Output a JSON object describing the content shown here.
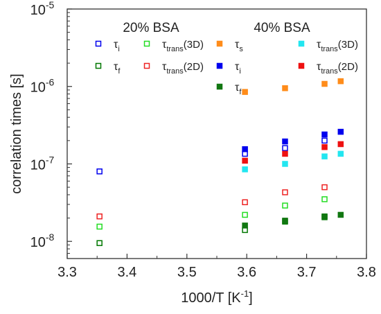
{
  "chart_data": {
    "type": "scatter",
    "xlabel": "1000/T [K",
    "xlabel_sup": "-1",
    "xlabel_end": "]",
    "ylabel": "correlation times [s]",
    "xlim": [
      3.3,
      3.8
    ],
    "ylim": [
      6e-09,
      1e-05
    ],
    "yscale": "log",
    "x_ticks": [
      "3.3",
      "3.4",
      "3.5",
      "3.6",
      "3.7",
      "3.8"
    ],
    "x_tick_values": [
      3.3,
      3.4,
      3.5,
      3.6,
      3.7,
      3.8
    ],
    "y_ticks": [
      {
        "base": "10",
        "exp": "-8",
        "value": 1e-08
      },
      {
        "base": "10",
        "exp": "-7",
        "value": 1e-07
      },
      {
        "base": "10",
        "exp": "-6",
        "value": 1e-06
      },
      {
        "base": "10",
        "exp": "-5",
        "value": 1e-05
      }
    ],
    "groups": [
      {
        "title": "20% BSA"
      },
      {
        "title": "40% BSA"
      }
    ],
    "legend_symbol": "τ",
    "series": [
      {
        "name": "τi",
        "sym": "τ",
        "sub": "i",
        "tail": "",
        "group": "20% BSA",
        "color": "#0000ee",
        "filled": false,
        "x": [
          3.354,
          3.597,
          3.664,
          3.73
        ],
        "y": [
          8e-08,
          1.35e-07,
          1.6e-07,
          2e-07
        ]
      },
      {
        "name": "τf",
        "sym": "τ",
        "sub": "f",
        "tail": "",
        "group": "20% BSA",
        "color": "#007700",
        "filled": false,
        "x": [
          3.354,
          3.597,
          3.664,
          3.73
        ],
        "y": [
          9.5e-09,
          1.4e-08,
          1.8e-08,
          2.05e-08
        ]
      },
      {
        "name": "τtrans(3D)",
        "sym": "τ",
        "sub": "trans",
        "tail": "(3D)",
        "group": "20% BSA",
        "color": "#22dd22",
        "filled": false,
        "x": [
          3.354,
          3.597,
          3.664,
          3.73
        ],
        "y": [
          1.55e-08,
          2.2e-08,
          2.9e-08,
          3.5e-08
        ]
      },
      {
        "name": "τtrans(2D)",
        "sym": "τ",
        "sub": "trans",
        "tail": "(2D)",
        "group": "20% BSA",
        "color": "#ee2222",
        "filled": false,
        "x": [
          3.354,
          3.597,
          3.664,
          3.73
        ],
        "y": [
          2.1e-08,
          3.2e-08,
          4.3e-08,
          5e-08
        ]
      },
      {
        "name": "τs",
        "sym": "τ",
        "sub": "s",
        "tail": "",
        "group": "40% BSA",
        "color": "#ff8c1a",
        "filled": true,
        "x": [
          3.597,
          3.664,
          3.73,
          3.757
        ],
        "y": [
          8.5e-07,
          9.5e-07,
          1.08e-06,
          1.17e-06
        ]
      },
      {
        "name": "τi",
        "sym": "τ",
        "sub": "i",
        "tail": "",
        "group": "40% BSA",
        "color": "#0000ee",
        "filled": true,
        "x": [
          3.597,
          3.664,
          3.73,
          3.757
        ],
        "y": [
          1.55e-07,
          1.95e-07,
          2.4e-07,
          2.6e-07
        ]
      },
      {
        "name": "τf",
        "sym": "τ",
        "sub": "f",
        "tail": "",
        "group": "40% BSA",
        "color": "#117711",
        "filled": true,
        "x": [
          3.597,
          3.664,
          3.73,
          3.757
        ],
        "y": [
          1.6e-08,
          1.85e-08,
          2.1e-08,
          2.2e-08
        ]
      },
      {
        "name": "τtrans(3D)",
        "sym": "τ",
        "sub": "trans",
        "tail": "(3D)",
        "group": "40% BSA",
        "color": "#22e6f0",
        "filled": true,
        "x": [
          3.597,
          3.664,
          3.73,
          3.757
        ],
        "y": [
          8.5e-08,
          1e-07,
          1.25e-07,
          1.35e-07
        ]
      },
      {
        "name": "τtrans(2D)",
        "sym": "τ",
        "sub": "trans",
        "tail": "(2D)",
        "group": "40% BSA",
        "color": "#ee1111",
        "filled": true,
        "x": [
          3.597,
          3.664,
          3.73,
          3.757
        ],
        "y": [
          1.1e-07,
          1.35e-07,
          1.65e-07,
          1.8e-07
        ]
      }
    ]
  }
}
